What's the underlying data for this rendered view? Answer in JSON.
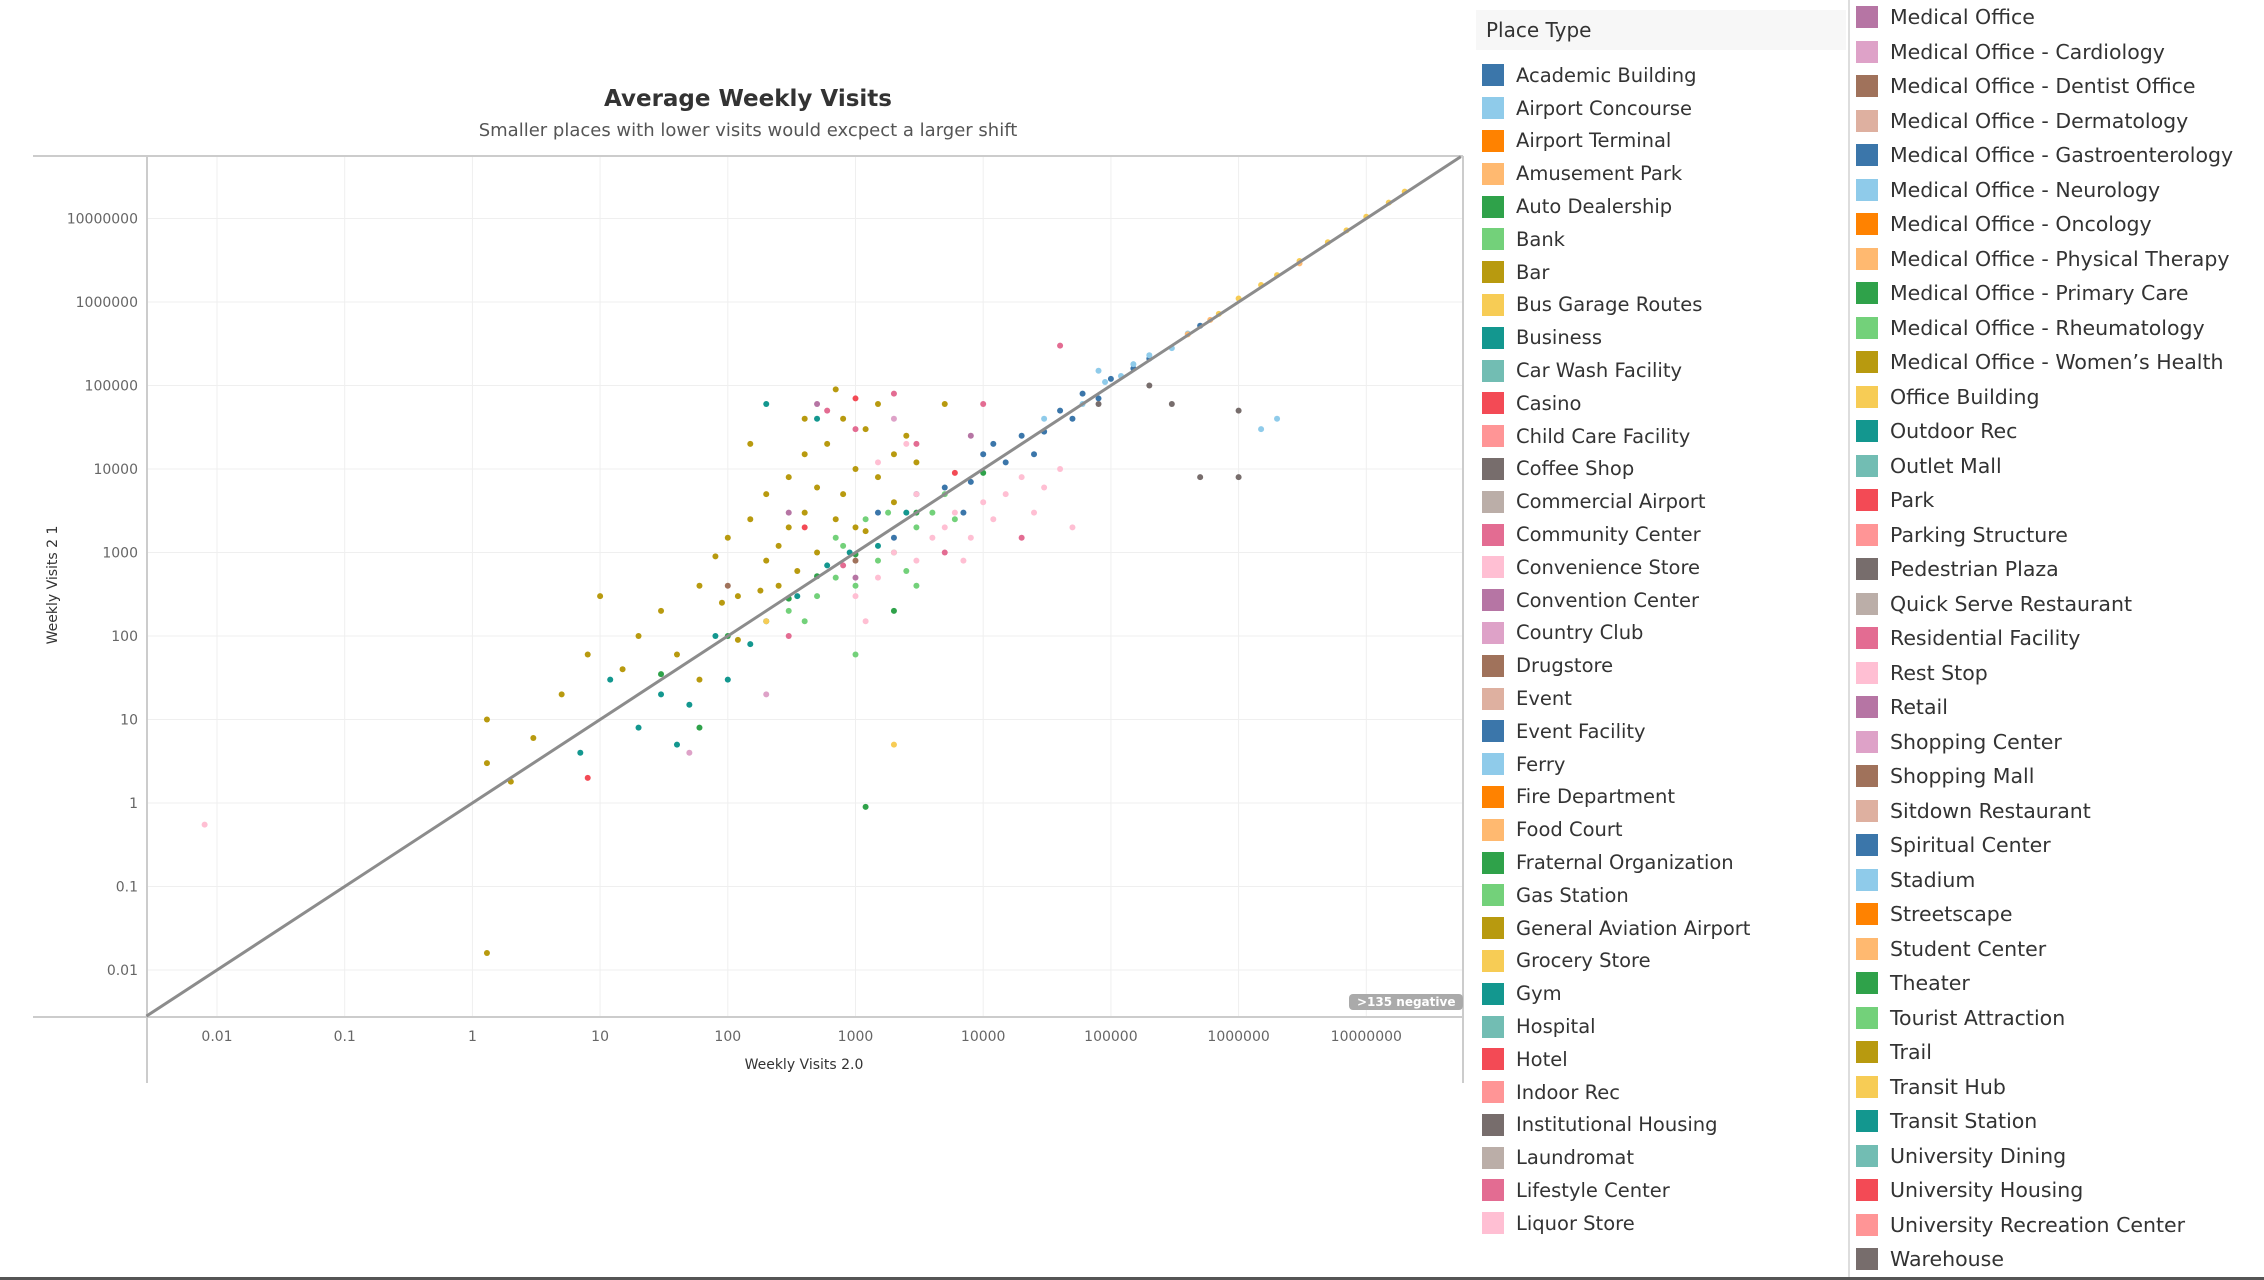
{
  "chart_data": {
    "type": "scatter",
    "title": "Average Weekly Visits",
    "subtitle": "Smaller places with lower visits would excpect a larger shift",
    "xlabel": "Weekly Visits 2.0",
    "ylabel": "Weekly Visits 2 1",
    "xscale": "log",
    "yscale": "log",
    "xlim": [
      0.0028,
      57000000
    ],
    "ylim": [
      0.0028,
      55000000
    ],
    "xticks": [
      "0.01",
      "0.1",
      "1",
      "10",
      "100",
      "1000",
      "10000",
      "100000",
      "1000000",
      "10000000"
    ],
    "yticks": [
      "0.01",
      "0.1",
      "1",
      "10",
      "100",
      "1000",
      "10000",
      "100000",
      "1000000",
      "10000000"
    ],
    "grid": true,
    "reference_line": "y = x",
    "annotation": ">135 negative",
    "legend_title": "Place Type",
    "legend_placement": "right",
    "points_format": [
      "x",
      "y",
      "category_index"
    ],
    "points": [
      [
        60,
        400,
        6
      ],
      [
        80,
        900,
        6
      ],
      [
        100,
        1500,
        6
      ],
      [
        120,
        300,
        6
      ],
      [
        150,
        2500,
        6
      ],
      [
        200,
        5000,
        6
      ],
      [
        200,
        800,
        6
      ],
      [
        250,
        1200,
        6
      ],
      [
        300,
        8000,
        6
      ],
      [
        300,
        2000,
        6
      ],
      [
        350,
        600,
        6
      ],
      [
        400,
        15000,
        6
      ],
      [
        400,
        3000,
        6
      ],
      [
        500,
        1000,
        6
      ],
      [
        500,
        6000,
        6
      ],
      [
        600,
        20000,
        6
      ],
      [
        700,
        2500,
        6
      ],
      [
        800,
        40000,
        6
      ],
      [
        800,
        5000,
        6
      ],
      [
        1000,
        10000,
        6
      ],
      [
        1000,
        2000,
        6
      ],
      [
        1200,
        30000,
        6
      ],
      [
        1500,
        8000,
        6
      ],
      [
        1500,
        60000,
        6
      ],
      [
        2000,
        15000,
        6
      ],
      [
        2000,
        4000,
        6
      ],
      [
        2500,
        25000,
        6
      ],
      [
        3000,
        12000,
        6
      ],
      [
        40,
        60,
        6
      ],
      [
        30,
        200,
        6
      ],
      [
        20,
        100,
        6
      ],
      [
        15,
        40,
        6
      ],
      [
        10,
        300,
        6
      ],
      [
        8,
        60,
        6
      ],
      [
        5,
        20,
        6
      ],
      [
        3,
        6,
        6
      ],
      [
        1.3,
        10,
        6
      ],
      [
        1.3,
        3,
        6
      ],
      [
        1.3,
        0.016,
        6
      ],
      [
        2,
        1.8,
        6
      ],
      [
        700,
        90000,
        6
      ],
      [
        400,
        40000,
        6
      ],
      [
        150,
        20000,
        6
      ],
      [
        250,
        400,
        6
      ],
      [
        90,
        250,
        6
      ],
      [
        60,
        30,
        6
      ],
      [
        120,
        90,
        6
      ],
      [
        180,
        350,
        6
      ],
      [
        1200,
        1800,
        6
      ],
      [
        5000,
        60000,
        6
      ],
      [
        300,
        200,
        5
      ],
      [
        500,
        300,
        5
      ],
      [
        700,
        500,
        5
      ],
      [
        1000,
        400,
        5
      ],
      [
        1500,
        800,
        5
      ],
      [
        2000,
        1000,
        5
      ],
      [
        3000,
        2000,
        5
      ],
      [
        800,
        1200,
        5
      ],
      [
        1200,
        2500,
        5
      ],
      [
        4000,
        3000,
        5
      ],
      [
        6000,
        2500,
        5
      ],
      [
        2500,
        600,
        5
      ],
      [
        400,
        150,
        5
      ],
      [
        1000,
        60,
        5
      ],
      [
        3000,
        400,
        5
      ],
      [
        700,
        1500,
        5
      ],
      [
        1800,
        3000,
        5
      ],
      [
        5000,
        5000,
        5
      ],
      [
        30,
        20,
        8
      ],
      [
        50,
        15,
        8
      ],
      [
        80,
        100,
        8
      ],
      [
        150,
        80,
        8
      ],
      [
        200,
        150,
        8
      ],
      [
        350,
        300,
        8
      ],
      [
        600,
        700,
        8
      ],
      [
        900,
        1000,
        8
      ],
      [
        1500,
        1200,
        8
      ],
      [
        2500,
        3000,
        8
      ],
      [
        20,
        8,
        8
      ],
      [
        40,
        5,
        8
      ],
      [
        100,
        30,
        8
      ],
      [
        500,
        40000,
        8
      ],
      [
        200,
        60000,
        8
      ],
      [
        12,
        30,
        8
      ],
      [
        7,
        4,
        8
      ],
      [
        1200,
        0.9,
        4
      ],
      [
        100,
        100,
        4
      ],
      [
        300,
        280,
        4
      ],
      [
        1000,
        950,
        4
      ],
      [
        3000,
        3000,
        4
      ],
      [
        10000,
        9000,
        4
      ],
      [
        30,
        35,
        4
      ],
      [
        500,
        520,
        4
      ],
      [
        60,
        8,
        4
      ],
      [
        2000,
        200,
        4
      ],
      [
        5000,
        6000,
        0
      ],
      [
        8000,
        7000,
        0
      ],
      [
        10000,
        15000,
        0
      ],
      [
        15000,
        12000,
        0
      ],
      [
        20000,
        25000,
        0
      ],
      [
        30000,
        28000,
        0
      ],
      [
        40000,
        50000,
        0
      ],
      [
        50000,
        40000,
        0
      ],
      [
        60000,
        80000,
        0
      ],
      [
        80000,
        70000,
        0
      ],
      [
        100000,
        120000,
        0
      ],
      [
        150000,
        160000,
        0
      ],
      [
        3000,
        5000,
        0
      ],
      [
        7000,
        3000,
        0
      ],
      [
        12000,
        20000,
        0
      ],
      [
        25000,
        15000,
        0
      ],
      [
        1500,
        3000,
        0
      ],
      [
        2000,
        1500,
        0
      ],
      [
        200000,
        210000,
        0
      ],
      [
        500000,
        520000,
        0
      ],
      [
        30000,
        40000,
        1
      ],
      [
        60000,
        60000,
        1
      ],
      [
        90000,
        110000,
        1
      ],
      [
        120000,
        130000,
        1
      ],
      [
        150000,
        180000,
        1
      ],
      [
        200000,
        230000,
        1
      ],
      [
        300000,
        280000,
        1
      ],
      [
        400000,
        420000,
        1
      ],
      [
        1500000,
        30000,
        1
      ],
      [
        2000000,
        40000,
        1
      ],
      [
        80000,
        150000,
        1
      ],
      [
        1000000,
        1100000,
        7
      ],
      [
        1500000,
        1600000,
        7
      ],
      [
        2000000,
        2100000,
        7
      ],
      [
        3000000,
        3100000,
        7
      ],
      [
        5000000,
        5200000,
        7
      ],
      [
        7000000,
        7200000,
        7
      ],
      [
        10000000,
        10500000,
        7
      ],
      [
        15000000,
        15500000,
        7
      ],
      [
        20000000,
        21000000,
        7
      ],
      [
        700000,
        720000,
        7
      ],
      [
        2000,
        5,
        7
      ],
      [
        200,
        150,
        7
      ],
      [
        400000,
        410000,
        3
      ],
      [
        600000,
        610000,
        3
      ],
      [
        3000000,
        2900000,
        3
      ],
      [
        1000,
        300,
        15
      ],
      [
        1500,
        500,
        15
      ],
      [
        2000,
        1000,
        15
      ],
      [
        3000,
        800,
        15
      ],
      [
        4000,
        1500,
        15
      ],
      [
        5000,
        2000,
        15
      ],
      [
        6000,
        3000,
        15
      ],
      [
        8000,
        1500,
        15
      ],
      [
        10000,
        4000,
        15
      ],
      [
        12000,
        2500,
        15
      ],
      [
        15000,
        5000,
        15
      ],
      [
        20000,
        8000,
        15
      ],
      [
        25000,
        3000,
        15
      ],
      [
        30000,
        6000,
        15
      ],
      [
        40000,
        10000,
        15
      ],
      [
        3000,
        5000,
        15
      ],
      [
        2500,
        20000,
        15
      ],
      [
        1500,
        12000,
        15
      ],
      [
        0.008,
        0.55,
        15
      ],
      [
        50000,
        2000,
        15
      ],
      [
        7000,
        800,
        15
      ],
      [
        1200,
        150,
        15
      ],
      [
        600,
        50000,
        14
      ],
      [
        1000,
        30000,
        14
      ],
      [
        2000,
        80000,
        14
      ],
      [
        3000,
        20000,
        14
      ],
      [
        10000,
        60000,
        14
      ],
      [
        40000,
        300000,
        14
      ],
      [
        5000,
        1000,
        14
      ],
      [
        800,
        700,
        14
      ],
      [
        20000,
        1500,
        14
      ],
      [
        300,
        100,
        14
      ],
      [
        500,
        60000,
        16
      ],
      [
        1000,
        500,
        16
      ],
      [
        200,
        20,
        17
      ],
      [
        50,
        4,
        17
      ],
      [
        2000,
        40000,
        17
      ],
      [
        8000,
        25000,
        16
      ],
      [
        300,
        3000,
        16
      ],
      [
        1000000,
        50000,
        12
      ],
      [
        500000,
        8000,
        12
      ],
      [
        1000000,
        8000,
        12
      ],
      [
        200000,
        100000,
        12
      ],
      [
        300000,
        60000,
        12
      ],
      [
        80000,
        60000,
        12
      ],
      [
        1000,
        70000,
        10
      ],
      [
        400,
        2000,
        10
      ],
      [
        6000,
        9000,
        10
      ],
      [
        8,
        2,
        10
      ],
      [
        1000,
        800,
        18
      ],
      [
        100,
        400,
        18
      ]
    ]
  },
  "palette": [
    "#3b76aa",
    "#8fcbea",
    "#ff8200",
    "#ffb970",
    "#2fa24a",
    "#73d17a",
    "#b89a0f",
    "#f7cc55",
    "#13978f",
    "#72bdb3",
    "#f34a55",
    "#ff9596",
    "#776d6c",
    "#bbaea8",
    "#e36c92",
    "#ffbfd3",
    "#b675a4",
    "#dea2c8",
    "#a0725b",
    "#deb0a0"
  ],
  "legend": {
    "title": "Place Type",
    "items": [
      "Academic Building",
      "Airport Concourse",
      "Airport Terminal",
      "Amusement Park",
      "Auto Dealership",
      "Bank",
      "Bar",
      "Bus Garage Routes",
      "Business",
      "Car Wash Facility",
      "Casino",
      "Child Care Facility",
      "Coffee Shop",
      "Commercial Airport",
      "Community Center",
      "Convenience Store",
      "Convention Center",
      "Country Club",
      "Drugstore",
      "Event",
      "Event Facility",
      "Ferry",
      "Fire Department",
      "Food Court",
      "Fraternal Organization",
      "Gas Station",
      "General Aviation Airport",
      "Grocery Store",
      "Gym",
      "Hospital",
      "Hotel",
      "Indoor Rec",
      "Institutional Housing",
      "Laundromat",
      "Lifestyle Center",
      "Liquor Store",
      "Medical Office",
      "Medical Office - Cardiology",
      "Medical Office - Dentist Office",
      "Medical Office - Dermatology",
      "Medical Office - Gastroenterology",
      "Medical Office - Neurology",
      "Medical Office - Oncology",
      "Medical Office - Physical Therapy",
      "Medical Office - Primary Care",
      "Medical Office - Rheumatology",
      "Medical Office - Women’s Health",
      "Office Building",
      "Outdoor Rec",
      "Outlet Mall",
      "Park",
      "Parking Structure",
      "Pedestrian Plaza",
      "Quick Serve Restaurant",
      "Residential Facility",
      "Rest Stop",
      "Retail",
      "Shopping Center",
      "Shopping Mall",
      "Sitdown Restaurant",
      "Spiritual Center",
      "Stadium",
      "Streetscape",
      "Student Center",
      "Theater",
      "Tourist Attraction",
      "Trail",
      "Transit Hub",
      "Transit Station",
      "University Dining",
      "University Housing",
      "University Recreation Center",
      "Warehouse"
    ]
  }
}
